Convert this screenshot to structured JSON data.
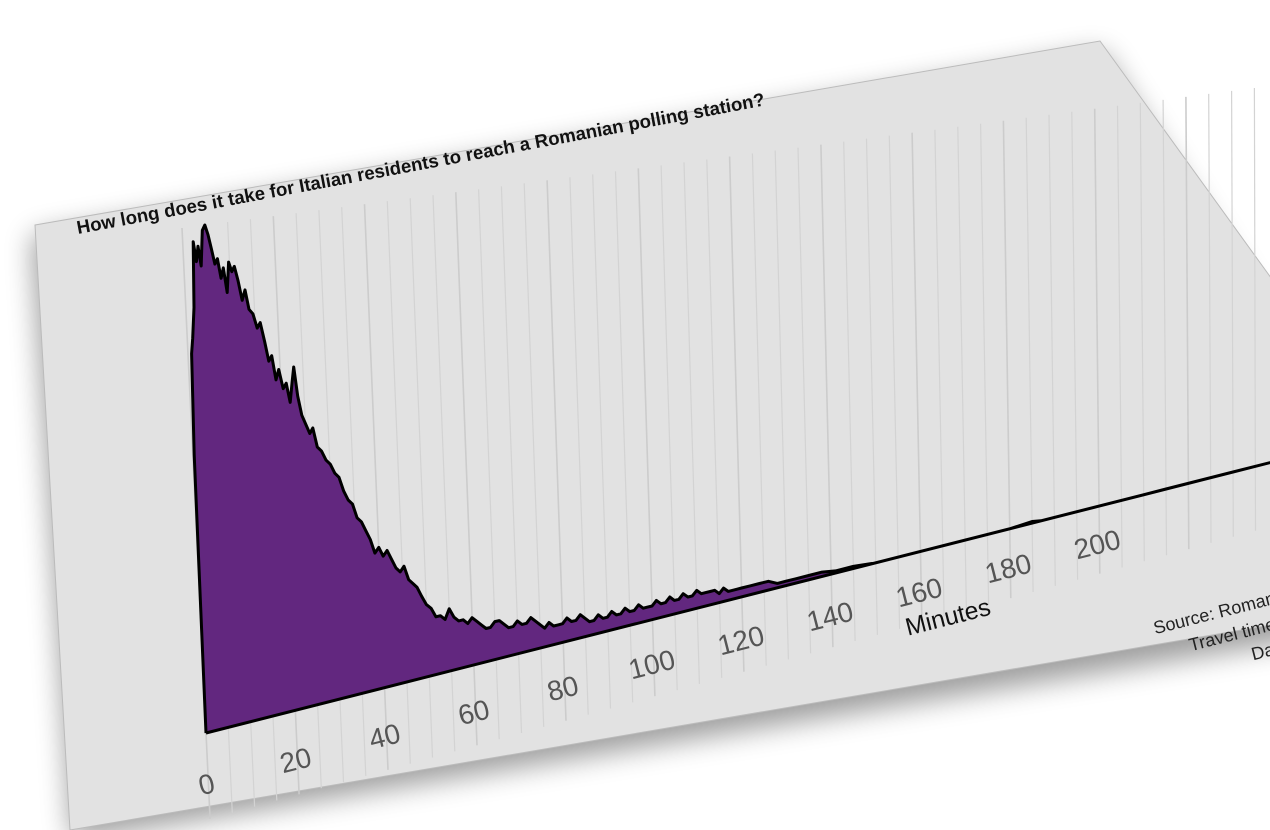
{
  "chart_data": {
    "type": "area",
    "title": "How long does it take for Italian residents to reach a Romanian polling station?",
    "xlabel": "Minutes",
    "ylabel": "",
    "x_ticks": [
      0,
      20,
      40,
      60,
      80,
      100,
      120,
      140,
      160,
      180,
      200
    ],
    "xlim": [
      0,
      245
    ],
    "ylim": [
      0,
      1
    ],
    "grid": {
      "vertical": true,
      "horizontal": false
    },
    "fill_color": "#62277f",
    "line_color": "#000000",
    "background_color": "#e2e2e2",
    "source_lines": [
      "Source: Romania",
      "Travel time c",
      "Data"
    ],
    "series": [
      {
        "values": [
          {
            "x": 0,
            "y": 0
          },
          {
            "x": 0.3,
            "y": 0.55
          },
          {
            "x": 0.8,
            "y": 0.75
          },
          {
            "x": 1.2,
            "y": 0.78
          },
          {
            "x": 1.8,
            "y": 0.84
          },
          {
            "x": 2.3,
            "y": 0.97
          },
          {
            "x": 2.8,
            "y": 0.93
          },
          {
            "x": 3.3,
            "y": 0.96
          },
          {
            "x": 3.8,
            "y": 0.92
          },
          {
            "x": 4.4,
            "y": 0.99
          },
          {
            "x": 5.0,
            "y": 1.0
          },
          {
            "x": 5.6,
            "y": 0.98
          },
          {
            "x": 6.2,
            "y": 0.95
          },
          {
            "x": 6.8,
            "y": 0.92
          },
          {
            "x": 7.4,
            "y": 0.93
          },
          {
            "x": 8.0,
            "y": 0.89
          },
          {
            "x": 8.6,
            "y": 0.91
          },
          {
            "x": 9.2,
            "y": 0.86
          },
          {
            "x": 9.8,
            "y": 0.92
          },
          {
            "x": 10.4,
            "y": 0.9
          },
          {
            "x": 11.0,
            "y": 0.91
          },
          {
            "x": 11.7,
            "y": 0.88
          },
          {
            "x": 12.4,
            "y": 0.84
          },
          {
            "x": 13.1,
            "y": 0.86
          },
          {
            "x": 13.8,
            "y": 0.82
          },
          {
            "x": 14.6,
            "y": 0.81
          },
          {
            "x": 15.4,
            "y": 0.78
          },
          {
            "x": 16.1,
            "y": 0.79
          },
          {
            "x": 16.9,
            "y": 0.75
          },
          {
            "x": 17.6,
            "y": 0.71
          },
          {
            "x": 18.3,
            "y": 0.72
          },
          {
            "x": 19.0,
            "y": 0.67
          },
          {
            "x": 19.7,
            "y": 0.69
          },
          {
            "x": 20.5,
            "y": 0.65
          },
          {
            "x": 21.2,
            "y": 0.66
          },
          {
            "x": 21.9,
            "y": 0.62
          },
          {
            "x": 22.5,
            "y": 0.66
          },
          {
            "x": 23.0,
            "y": 0.69
          },
          {
            "x": 23.6,
            "y": 0.63
          },
          {
            "x": 24.3,
            "y": 0.59
          },
          {
            "x": 25.1,
            "y": 0.57
          },
          {
            "x": 25.9,
            "y": 0.55
          },
          {
            "x": 26.6,
            "y": 0.56
          },
          {
            "x": 27.4,
            "y": 0.52
          },
          {
            "x": 28.3,
            "y": 0.51
          },
          {
            "x": 29.2,
            "y": 0.49
          },
          {
            "x": 30.1,
            "y": 0.48
          },
          {
            "x": 31.0,
            "y": 0.46
          },
          {
            "x": 31.9,
            "y": 0.45
          },
          {
            "x": 32.8,
            "y": 0.42
          },
          {
            "x": 33.7,
            "y": 0.4
          },
          {
            "x": 34.6,
            "y": 0.39
          },
          {
            "x": 35.5,
            "y": 0.36
          },
          {
            "x": 36.4,
            "y": 0.35
          },
          {
            "x": 37.3,
            "y": 0.33
          },
          {
            "x": 38.2,
            "y": 0.31
          },
          {
            "x": 39.1,
            "y": 0.28
          },
          {
            "x": 40.0,
            "y": 0.29
          },
          {
            "x": 40.9,
            "y": 0.27
          },
          {
            "x": 41.8,
            "y": 0.28
          },
          {
            "x": 42.7,
            "y": 0.26
          },
          {
            "x": 43.6,
            "y": 0.24
          },
          {
            "x": 44.5,
            "y": 0.23
          },
          {
            "x": 45.4,
            "y": 0.24
          },
          {
            "x": 46.3,
            "y": 0.21
          },
          {
            "x": 47.2,
            "y": 0.2
          },
          {
            "x": 48.1,
            "y": 0.19
          },
          {
            "x": 49.0,
            "y": 0.17
          },
          {
            "x": 50.0,
            "y": 0.15
          },
          {
            "x": 51.0,
            "y": 0.14
          },
          {
            "x": 52.0,
            "y": 0.12
          },
          {
            "x": 53.0,
            "y": 0.12
          },
          {
            "x": 54.0,
            "y": 0.11
          },
          {
            "x": 55.0,
            "y": 0.13
          },
          {
            "x": 56.0,
            "y": 0.11
          },
          {
            "x": 57.0,
            "y": 0.1
          },
          {
            "x": 58.0,
            "y": 0.1
          },
          {
            "x": 59.0,
            "y": 0.09
          },
          {
            "x": 60.0,
            "y": 0.1
          },
          {
            "x": 61.0,
            "y": 0.09
          },
          {
            "x": 62.0,
            "y": 0.08
          },
          {
            "x": 63.0,
            "y": 0.07
          },
          {
            "x": 64.0,
            "y": 0.07
          },
          {
            "x": 65.0,
            "y": 0.08
          },
          {
            "x": 66.0,
            "y": 0.08
          },
          {
            "x": 67.0,
            "y": 0.07
          },
          {
            "x": 68.0,
            "y": 0.06
          },
          {
            "x": 69.0,
            "y": 0.06
          },
          {
            "x": 70.0,
            "y": 0.07
          },
          {
            "x": 71.0,
            "y": 0.06
          },
          {
            "x": 72.0,
            "y": 0.06
          },
          {
            "x": 73.0,
            "y": 0.07
          },
          {
            "x": 74.0,
            "y": 0.06
          },
          {
            "x": 75.0,
            "y": 0.05
          },
          {
            "x": 76.0,
            "y": 0.04
          },
          {
            "x": 77.0,
            "y": 0.05
          },
          {
            "x": 78.0,
            "y": 0.04
          },
          {
            "x": 79.0,
            "y": 0.04
          },
          {
            "x": 80.0,
            "y": 0.04
          },
          {
            "x": 81.0,
            "y": 0.05
          },
          {
            "x": 82.0,
            "y": 0.04
          },
          {
            "x": 83.0,
            "y": 0.04
          },
          {
            "x": 84.0,
            "y": 0.05
          },
          {
            "x": 85.0,
            "y": 0.04
          },
          {
            "x": 86.0,
            "y": 0.03
          },
          {
            "x": 87.0,
            "y": 0.03
          },
          {
            "x": 88.0,
            "y": 0.04
          },
          {
            "x": 89.0,
            "y": 0.03
          },
          {
            "x": 90.0,
            "y": 0.03
          },
          {
            "x": 91.0,
            "y": 0.04
          },
          {
            "x": 92.0,
            "y": 0.03
          },
          {
            "x": 93.0,
            "y": 0.03
          },
          {
            "x": 94.0,
            "y": 0.04
          },
          {
            "x": 95.0,
            "y": 0.03
          },
          {
            "x": 96.0,
            "y": 0.03
          },
          {
            "x": 97.0,
            "y": 0.04
          },
          {
            "x": 98.0,
            "y": 0.03
          },
          {
            "x": 99.0,
            "y": 0.03
          },
          {
            "x": 100.0,
            "y": 0.03
          },
          {
            "x": 101.0,
            "y": 0.04
          },
          {
            "x": 102.0,
            "y": 0.03
          },
          {
            "x": 103.0,
            "y": 0.03
          },
          {
            "x": 104.0,
            "y": 0.04
          },
          {
            "x": 105.0,
            "y": 0.03
          },
          {
            "x": 106.0,
            "y": 0.03
          },
          {
            "x": 107.0,
            "y": 0.04
          },
          {
            "x": 108.0,
            "y": 0.03
          },
          {
            "x": 109.0,
            "y": 0.03
          },
          {
            "x": 110.0,
            "y": 0.04
          },
          {
            "x": 111.0,
            "y": 0.03
          },
          {
            "x": 112.0,
            "y": 0.03
          },
          {
            "x": 113.0,
            "y": 0.03
          },
          {
            "x": 114.0,
            "y": 0.03
          },
          {
            "x": 115.0,
            "y": 0.02
          },
          {
            "x": 116.0,
            "y": 0.03
          },
          {
            "x": 117.0,
            "y": 0.02
          },
          {
            "x": 118.0,
            "y": 0.02
          },
          {
            "x": 119.0,
            "y": 0.02
          },
          {
            "x": 120.0,
            "y": 0.02
          },
          {
            "x": 122.0,
            "y": 0.02
          },
          {
            "x": 124.0,
            "y": 0.02
          },
          {
            "x": 126.0,
            "y": 0.02
          },
          {
            "x": 128.0,
            "y": 0.01
          },
          {
            "x": 130.0,
            "y": 0.01
          },
          {
            "x": 132.0,
            "y": 0.01
          },
          {
            "x": 135.0,
            "y": 0.01
          },
          {
            "x": 138.0,
            "y": 0.01
          },
          {
            "x": 141.0,
            "y": 0.005
          },
          {
            "x": 145.0,
            "y": 0.005
          },
          {
            "x": 150.0,
            "y": 0.0
          },
          {
            "x": 160.0,
            "y": 0.0
          },
          {
            "x": 170.0,
            "y": 0.0
          },
          {
            "x": 180.0,
            "y": 0.0
          },
          {
            "x": 185.0,
            "y": 0.004
          },
          {
            "x": 187.0,
            "y": 0.0
          },
          {
            "x": 200.0,
            "y": 0.0
          },
          {
            "x": 215.0,
            "y": 0.0
          },
          {
            "x": 230.0,
            "y": 0.0
          },
          {
            "x": 245.0,
            "y": 0.0
          }
        ]
      }
    ]
  }
}
